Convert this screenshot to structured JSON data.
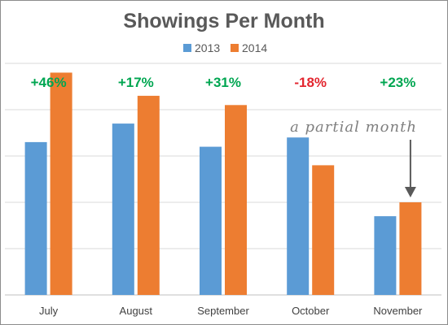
{
  "chart_data": {
    "type": "bar",
    "title": "Showings Per Month",
    "categories": [
      "July",
      "August",
      "September",
      "October",
      "November"
    ],
    "series": [
      {
        "name": "2013",
        "values": [
          33,
          37,
          32,
          34,
          17
        ],
        "color": "#5b9bd5"
      },
      {
        "name": "2014",
        "values": [
          48,
          43,
          41,
          28,
          20
        ],
        "color": "#ed7d31"
      }
    ],
    "changes": [
      {
        "label": "+46%",
        "color": "#00a651"
      },
      {
        "label": "+17%",
        "color": "#00a651"
      },
      {
        "label": "+31%",
        "color": "#00a651"
      },
      {
        "label": "-18%",
        "color": "#e3262f"
      },
      {
        "label": "+23%",
        "color": "#00a651"
      }
    ],
    "annotation": {
      "text": "a partial month",
      "category": "November",
      "series": "2014"
    },
    "legend_position": "top",
    "ylim": [
      0,
      50
    ],
    "gridline_step": 10,
    "grid": true,
    "y_tick_labels_shown": false
  }
}
